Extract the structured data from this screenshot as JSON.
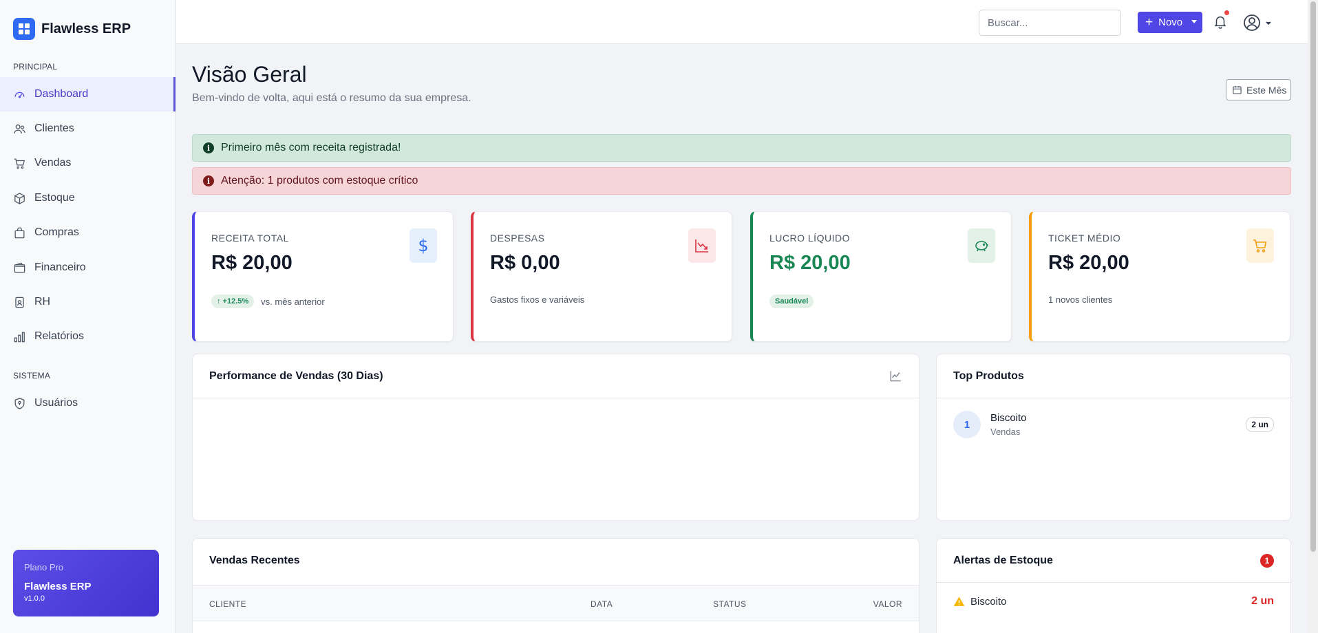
{
  "app": {
    "name": "Flawless ERP"
  },
  "sidebar": {
    "section_principal": "PRINCIPAL",
    "section_sistema": "SISTEMA",
    "items": [
      {
        "label": "Dashboard",
        "icon": "gauge-icon"
      },
      {
        "label": "Clientes",
        "icon": "users-icon"
      },
      {
        "label": "Vendas",
        "icon": "cart-icon"
      },
      {
        "label": "Estoque",
        "icon": "box-icon"
      },
      {
        "label": "Compras",
        "icon": "bag-icon"
      },
      {
        "label": "Financeiro",
        "icon": "wallet-icon"
      },
      {
        "label": "RH",
        "icon": "id-badge-icon"
      },
      {
        "label": "Relatórios",
        "icon": "bar-chart-icon"
      },
      {
        "label": "Usuários",
        "icon": "shield-icon"
      }
    ],
    "plan": {
      "tier": "Plano Pro",
      "name": "Flawless ERP",
      "version": "v1.0.0"
    }
  },
  "topbar": {
    "search_placeholder": "Buscar...",
    "new_label": "Novo"
  },
  "header": {
    "title": "Visão Geral",
    "subtitle": "Bem-vindo de volta, aqui está o resumo da sua empresa.",
    "period_label": "Este Mês"
  },
  "alerts": {
    "success": "Primeiro mês com receita registrada!",
    "danger": "Atenção: 1 produtos com estoque crítico"
  },
  "kpis": {
    "revenue": {
      "label": "RECEITA TOTAL",
      "value": "R$ 20,00",
      "badge": "↑ +12.5%",
      "note": "vs. mês anterior",
      "accent": "#4f46e5"
    },
    "expenses": {
      "label": "DESPESAS",
      "value": "R$ 0,00",
      "note": "Gastos fixos e variáveis",
      "accent": "#dc3545"
    },
    "profit": {
      "label": "LUCRO LÍQUIDO",
      "value": "R$ 20,00",
      "badge": "Saudável",
      "accent": "#198754"
    },
    "ticket": {
      "label": "TICKET MÉDIO",
      "value": "R$ 20,00",
      "note": "1 novos clientes",
      "accent": "#f59e0b"
    }
  },
  "sales_chart": {
    "title": "Performance de Vendas (30 Dias)"
  },
  "top_products": {
    "title": "Top Produtos",
    "items": [
      {
        "rank": "1",
        "name": "Biscoito",
        "category": "Vendas",
        "qty": "2 un"
      }
    ]
  },
  "recent_sales": {
    "title": "Vendas Recentes",
    "columns": [
      "CLIENTE",
      "DATA",
      "STATUS",
      "VALOR"
    ]
  },
  "stock_alerts": {
    "title": "Alertas de Estoque",
    "count": "1",
    "items": [
      {
        "name": "Biscoito",
        "qty": "2 un"
      }
    ]
  }
}
